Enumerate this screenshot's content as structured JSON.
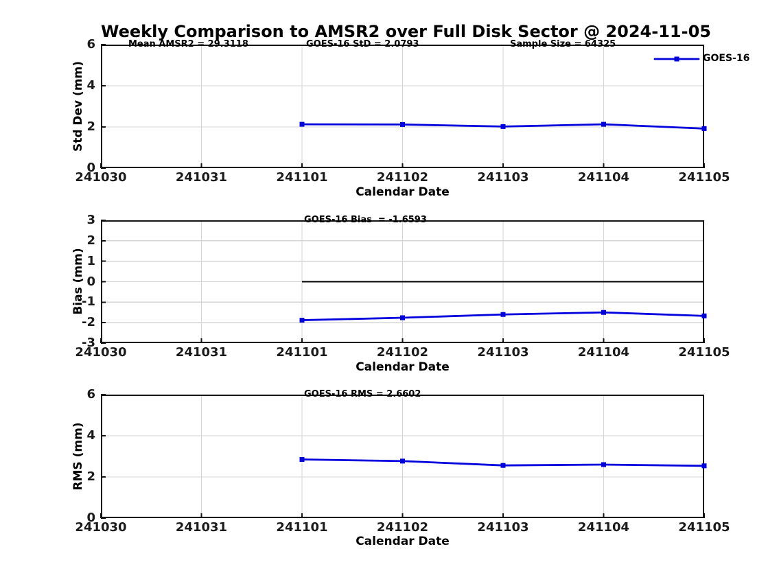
{
  "title": "Weekly Comparison to AMSR2 over Full Disk Sector @ 2024-11-05",
  "legend": {
    "label": "GOES-16"
  },
  "stats": {
    "mean_amsr2": 29.3118,
    "goes16_std": 2.0793,
    "sample_size": 64325,
    "goes16_bias": -1.6593,
    "goes16_rms": 2.6602
  },
  "colors": {
    "line": "#0000dd",
    "marker": "#0000dd",
    "grid": "#d5d5d5",
    "axis": "#141414",
    "zero_line": "#000000",
    "text": "#000000",
    "background": "#ffffff"
  },
  "chart_data": [
    {
      "type": "line",
      "annotations": [
        "Mean AMSR2 = 29.3118",
        "GOES-16 StD = 2.0793",
        "Sample Size = 64325"
      ],
      "ylabel": "Std Dev (mm)",
      "xlabel": "Calendar Date",
      "x_categories": [
        "241030",
        "241031",
        "241101",
        "241102",
        "241103",
        "241104",
        "241105"
      ],
      "ylim": [
        0,
        6
      ],
      "yticks": [
        0,
        2,
        4,
        6
      ],
      "grid": true,
      "legend_position": "upper right outside",
      "series": [
        {
          "name": "GOES-16",
          "x": [
            "241101",
            "241102",
            "241103",
            "241104",
            "241105"
          ],
          "values": [
            2.13,
            2.12,
            2.02,
            2.13,
            1.92
          ]
        }
      ]
    },
    {
      "type": "line",
      "annotations": [
        "GOES-16 Bias  = -1.6593"
      ],
      "ylabel": "Bias (mm)",
      "xlabel": "Calendar Date",
      "x_categories": [
        "241030",
        "241031",
        "241101",
        "241102",
        "241103",
        "241104",
        "241105"
      ],
      "ylim": [
        -3,
        3
      ],
      "yticks": [
        -3,
        -2,
        -1,
        0,
        1,
        2,
        3
      ],
      "grid": true,
      "zero_line": true,
      "series": [
        {
          "name": "GOES-16",
          "x": [
            "241101",
            "241102",
            "241103",
            "241104",
            "241105"
          ],
          "values": [
            -1.88,
            -1.76,
            -1.6,
            -1.5,
            -1.67
          ]
        }
      ]
    },
    {
      "type": "line",
      "annotations": [
        "GOES-16 RMS = 2.6602"
      ],
      "ylabel": "RMS (mm)",
      "xlabel": "Calendar Date",
      "x_categories": [
        "241030",
        "241031",
        "241101",
        "241102",
        "241103",
        "241104",
        "241105"
      ],
      "ylim": [
        0,
        6
      ],
      "yticks": [
        0,
        2,
        4,
        6
      ],
      "grid": true,
      "series": [
        {
          "name": "GOES-16",
          "x": [
            "241101",
            "241102",
            "241103",
            "241104",
            "241105"
          ],
          "values": [
            2.85,
            2.77,
            2.56,
            2.6,
            2.54
          ]
        }
      ]
    }
  ]
}
